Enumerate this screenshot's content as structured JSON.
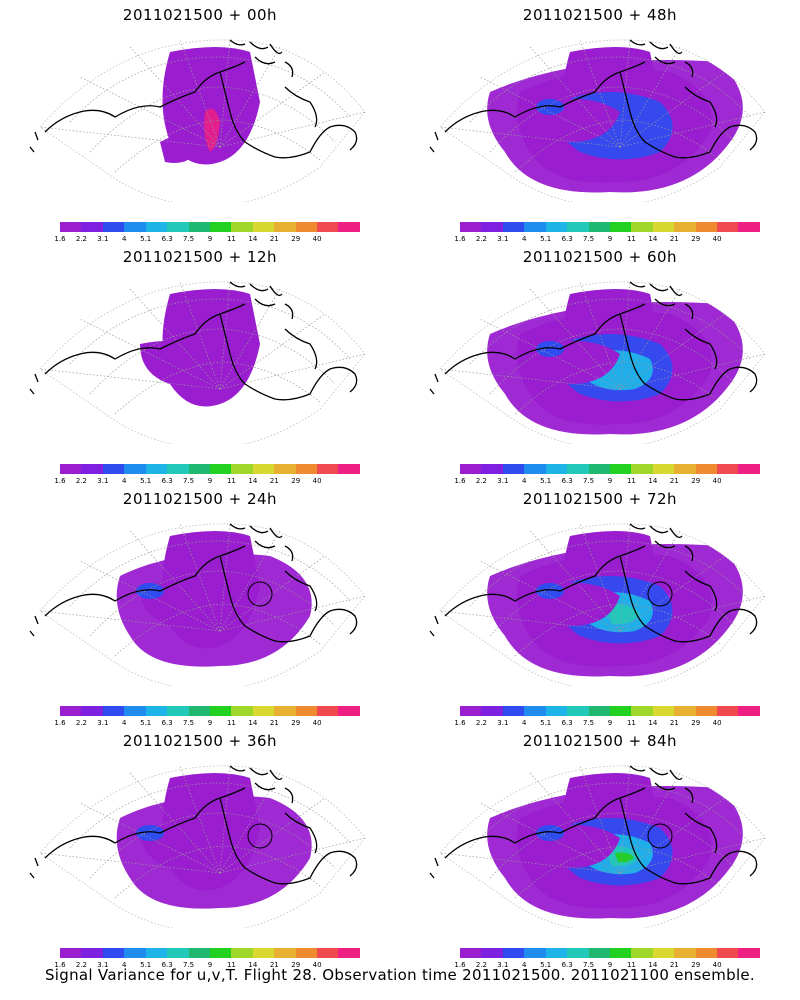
{
  "panels": [
    {
      "title": "2011021500 + 00h",
      "level": 0
    },
    {
      "title": "2011021500 + 48h",
      "level": 3
    },
    {
      "title": "2011021500 + 12h",
      "level": 1
    },
    {
      "title": "2011021500 + 60h",
      "level": 4
    },
    {
      "title": "2011021500 + 24h",
      "level": 2
    },
    {
      "title": "2011021500 + 72h",
      "level": 5
    },
    {
      "title": "2011021500 + 36h",
      "level": 2
    },
    {
      "title": "2011021500 + 84h",
      "level": 6
    }
  ],
  "colorbar": {
    "labels": [
      "1.6",
      "2.2",
      "3.1",
      "4",
      "5.1",
      "6.3",
      "7.5",
      "9",
      "11",
      "14",
      "21",
      "29",
      "40"
    ],
    "colors": [
      "#9a1ed0",
      "#7d20e0",
      "#2f4cf0",
      "#1f8cf0",
      "#1fb4e8",
      "#22c8b8",
      "#1fb870",
      "#22d020",
      "#9ed62a",
      "#d8d830",
      "#e8b030",
      "#ef8a30",
      "#f04a50",
      "#ee1f82"
    ]
  },
  "footer": "Signal Variance for u,v,T. Flight 28. Observation time 2011021500. 2011021100 ensemble."
}
